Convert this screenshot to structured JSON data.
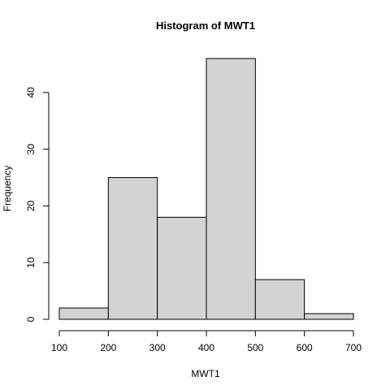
{
  "chart_data": {
    "type": "bar",
    "title": "Histogram of  MWT1",
    "xlabel": "MWT1",
    "ylabel": "Frequency",
    "bins": [
      {
        "from": 100,
        "to": 200,
        "count": 2
      },
      {
        "from": 200,
        "to": 300,
        "count": 25
      },
      {
        "from": 300,
        "to": 400,
        "count": 18
      },
      {
        "from": 400,
        "to": 500,
        "count": 46
      },
      {
        "from": 500,
        "to": 600,
        "count": 7
      },
      {
        "from": 600,
        "to": 700,
        "count": 1
      }
    ],
    "xticks": [
      100,
      200,
      300,
      400,
      500,
      600,
      700
    ],
    "yticks": [
      0,
      10,
      20,
      30,
      40
    ],
    "xlim": [
      100,
      700
    ],
    "ylim": [
      0,
      46
    ],
    "bar_color": "#d3d3d3",
    "grid": false
  }
}
